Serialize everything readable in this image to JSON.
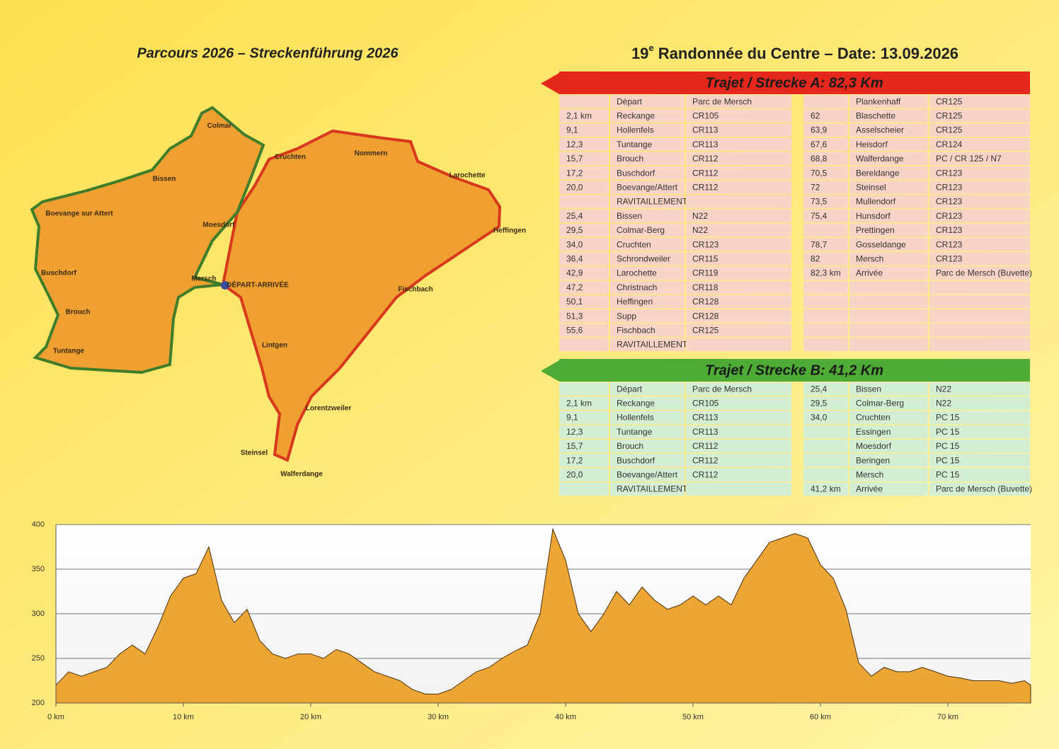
{
  "headings": {
    "left": "Parcours 2026 – Streckenführung 2026",
    "right": {
      "number": "19",
      "sup": "e",
      "text": "Randonnée du Centre – Date: 13.09.2026"
    }
  },
  "map": {
    "labels": [
      "Colmar",
      "Cruchten",
      "Nommern",
      "Bissen",
      "Larochette",
      "Boevange sur Attert",
      "Moesdorf",
      "Heffingen",
      "Buschdorf",
      "Mersch",
      "DÉPART-ARRIVÉE",
      "Fischbach",
      "Brouch",
      "Lintgen",
      "Tuntange",
      "Lorentzweiler",
      "Steinsel",
      "Walferdange"
    ]
  },
  "tables": [
    {
      "title": "Trajet / Strecke A: 82,3 Km",
      "left": [
        [
          null,
          "Départ",
          "Parc de Mersch"
        ],
        [
          "2,1 km",
          "Reckange",
          "CR105"
        ],
        [
          "9,1",
          "Hollenfels",
          "CR113"
        ],
        [
          "12,3",
          "Tuntange",
          "CR113"
        ],
        [
          "15,7",
          "Brouch",
          "CR112"
        ],
        [
          "17,2",
          "Buschdorf",
          "CR112"
        ],
        [
          "20,0",
          "Boevange/Attert",
          "CR112"
        ],
        [
          null,
          "RAVITAILLEMENT",
          null
        ],
        [
          "25,4",
          "Bissen",
          "N22"
        ],
        [
          "29,5",
          "Colmar-Berg",
          "N22"
        ],
        [
          "34,0",
          "Cruchten",
          "CR123"
        ],
        [
          "36,4",
          "Schrondweiler",
          "CR115"
        ],
        [
          "42,9",
          "Larochette",
          "CR119"
        ],
        [
          "47,2",
          "Christnach",
          "CR118"
        ],
        [
          "50,1",
          "Heffingen",
          "CR128"
        ],
        [
          "51,3",
          "Supp",
          "CR128"
        ],
        [
          "55,6",
          "Fischbach",
          "CR125"
        ],
        [
          null,
          "RAVITAILLEMENT",
          null
        ]
      ],
      "right": [
        [
          null,
          "Plankenhaff",
          "CR125"
        ],
        [
          "62",
          "Blaschette",
          "CR125"
        ],
        [
          "63,9",
          "Asselscheier",
          "CR125"
        ],
        [
          "67,6",
          "Heisdorf",
          "CR124"
        ],
        [
          "68,8",
          "Walferdange",
          "PC / CR 125 / N7"
        ],
        [
          "70,5",
          "Bereldange",
          "CR123"
        ],
        [
          "72",
          "Steinsel",
          "CR123"
        ],
        [
          "73,5",
          "Mullendorf",
          "CR123"
        ],
        [
          "75,4",
          "Hunsdorf",
          "CR123"
        ],
        [
          null,
          "Prettingen",
          "CR123"
        ],
        [
          "78,7",
          "Gosseldange",
          "CR123"
        ],
        [
          "82",
          "Mersch",
          "CR123"
        ],
        [
          "82,3 km",
          "Arrivée",
          "Parc de Mersch (Buvette)"
        ]
      ]
    },
    {
      "title": "Trajet / Strecke B: 41,2 Km",
      "left": [
        [
          null,
          "Départ",
          "Parc de Mersch"
        ],
        [
          "2,1 km",
          "Reckange",
          "CR105"
        ],
        [
          "9,1",
          "Hollenfels",
          "CR113"
        ],
        [
          "12,3",
          "Tuntange",
          "CR113"
        ],
        [
          "15,7",
          "Brouch",
          "CR112"
        ],
        [
          "17,2",
          "Buschdorf",
          "CR112"
        ],
        [
          "20,0",
          "Boevange/Attert",
          "CR112"
        ],
        [
          null,
          "RAVITAILLEMENT",
          null
        ]
      ],
      "right": [
        [
          "25,4",
          "Bissen",
          "N22"
        ],
        [
          "29,5",
          "Colmar-Berg",
          "N22"
        ],
        [
          "34,0",
          "Cruchten",
          "PC 15"
        ],
        [
          null,
          "Essingen",
          "PC 15"
        ],
        [
          null,
          "Moesdorf",
          "PC 15"
        ],
        [
          null,
          "Beringen",
          "PC 15"
        ],
        [
          null,
          "Mersch",
          "PC 15"
        ],
        [
          "41,2 km",
          "Arrivée",
          "Parc de Mersch (Buvette)"
        ]
      ]
    }
  ],
  "chart_data": {
    "type": "area",
    "color": "#eda534",
    "grid": true,
    "x": [
      0,
      1,
      2,
      3,
      4,
      5,
      6,
      7,
      8,
      9,
      10,
      11,
      12,
      13,
      14,
      15,
      16,
      17,
      18,
      19,
      20,
      21,
      22,
      23,
      24,
      25,
      26,
      27,
      28,
      29,
      30,
      31,
      32,
      33,
      34,
      35,
      36,
      37,
      38,
      39,
      40,
      41,
      42,
      43,
      44,
      45,
      46,
      47,
      48,
      49,
      50,
      51,
      52,
      53,
      54,
      55,
      56,
      57,
      58,
      59,
      60,
      61,
      62,
      63,
      64,
      65,
      66,
      67,
      68,
      69,
      70,
      71,
      72,
      73,
      74,
      75,
      76,
      76.5
    ],
    "values": [
      220,
      235,
      230,
      235,
      240,
      255,
      265,
      255,
      285,
      320,
      340,
      345,
      375,
      315,
      290,
      305,
      270,
      255,
      250,
      255,
      255,
      250,
      260,
      255,
      245,
      235,
      230,
      225,
      215,
      210,
      210,
      215,
      225,
      235,
      240,
      250,
      258,
      265,
      300,
      395,
      360,
      300,
      280,
      300,
      325,
      310,
      330,
      315,
      305,
      310,
      320,
      310,
      320,
      310,
      340,
      360,
      380,
      385,
      390,
      385,
      355,
      340,
      305,
      245,
      230,
      240,
      235,
      235,
      240,
      235,
      230,
      228,
      225,
      225,
      225,
      222,
      225,
      220
    ],
    "xlim": [
      0,
      76.5
    ],
    "ylim": [
      200,
      400
    ],
    "xticks": [
      {
        "value": 0,
        "label": "0 km"
      },
      {
        "value": 10,
        "label": "10 km"
      },
      {
        "value": 20,
        "label": "20 km"
      },
      {
        "value": 30,
        "label": "30 km"
      },
      {
        "value": 40,
        "label": "40 km"
      },
      {
        "value": 50,
        "label": "50 km"
      },
      {
        "value": 60,
        "label": "60 km"
      },
      {
        "value": 70,
        "label": "70 km"
      }
    ],
    "yticks": [
      200,
      250,
      300,
      350,
      400
    ]
  }
}
